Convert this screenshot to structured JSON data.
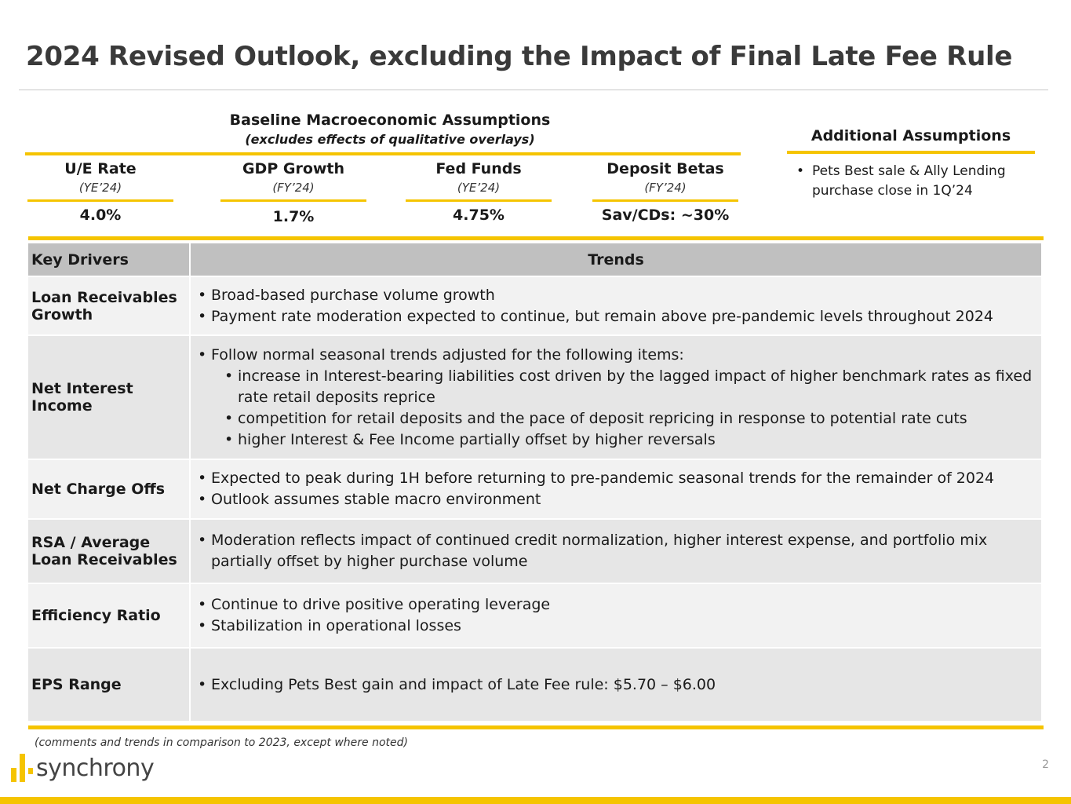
{
  "title": "2024 Revised Outlook, excluding the Impact of Final Late Fee Rule",
  "macro": {
    "heading": "Baseline Macroeconomic Assumptions",
    "subheading": "(excludes effects of qualitative overlays)",
    "metrics": [
      {
        "label": "U/E Rate",
        "period": "(YE’24)",
        "value": "4.0%"
      },
      {
        "label": "GDP Growth",
        "period": "(FY’24)",
        "value": "1.7%"
      },
      {
        "label": "Fed Funds",
        "period": "(YE’24)",
        "value": "4.75%"
      },
      {
        "label": "Deposit Betas",
        "period": "(FY’24)",
        "value": "Sav/CDs: ~30%"
      }
    ]
  },
  "additional": {
    "heading": "Additional Assumptions",
    "items": [
      "Pets Best sale & Ally Lending purchase close in 1Q’24"
    ]
  },
  "table": {
    "headers": {
      "key": "Key Drivers",
      "trend": "Trends"
    },
    "rows": [
      {
        "driver": "Loan Receivables Growth",
        "bullets": [
          "Broad-based purchase volume growth",
          "Payment rate moderation expected to continue, but remain above pre-pandemic levels throughout 2024"
        ]
      },
      {
        "driver": "Net Interest Income",
        "bullets": [
          "Follow normal seasonal trends adjusted for the following items:"
        ],
        "subbullets": [
          "increase in Interest-bearing liabilities cost driven by the lagged impact of higher benchmark rates as fixed rate retail deposits reprice",
          "competition for retail deposits and the pace of deposit repricing in response to potential rate cuts",
          "higher Interest & Fee Income partially offset by higher reversals"
        ]
      },
      {
        "driver": "Net Charge Offs",
        "bullets": [
          "Expected to peak during 1H before returning to pre-pandemic seasonal trends for the remainder of 2024",
          "Outlook assumes stable macro environment"
        ]
      },
      {
        "driver": "RSA / Average Loan Receivables",
        "bullets": [
          "Moderation reflects impact of continued credit normalization, higher interest expense, and portfolio mix partially offset by higher purchase volume"
        ]
      },
      {
        "driver": "Efficiency Ratio",
        "bullets": [
          "Continue to drive positive operating leverage",
          "Stabilization in operational losses"
        ]
      },
      {
        "driver": "EPS Range",
        "bullets": [
          "Excluding Pets Best gain and impact of Late Fee rule: $5.70 – $6.00"
        ]
      }
    ]
  },
  "footnote": "(comments and trends in comparison to 2023, except where noted)",
  "logo_text": "synchrony",
  "page_number": "2",
  "colors": {
    "accent": "#f5c400",
    "header_gray": "#c0c0c0",
    "row_light": "#f2f2f2",
    "row_dark": "#e6e6e6",
    "title": "#3a3a3a"
  }
}
